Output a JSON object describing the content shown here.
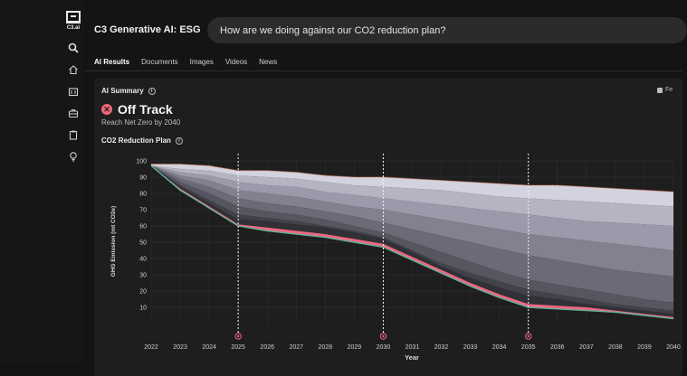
{
  "app": {
    "title": "C3 Generative AI: ESG",
    "logo_text": "C3.ai"
  },
  "rail": {
    "icons": [
      "search-icon",
      "home-icon",
      "building-icon",
      "briefcase-icon",
      "clipboard-icon",
      "lightbulb-icon"
    ]
  },
  "search": {
    "query": "How are we doing against our CO2 reduction plan?"
  },
  "tabs": [
    {
      "label": "AI Results",
      "active": true
    },
    {
      "label": "Documents",
      "active": false
    },
    {
      "label": "Images",
      "active": false
    },
    {
      "label": "Videos",
      "active": false
    },
    {
      "label": "News",
      "active": false
    }
  ],
  "summary": {
    "label": "AI Summary",
    "feedback_label": "Fe",
    "status": "Off Track",
    "status_color": "#f0677d",
    "subtitle": "Reach Net Zero by 2040",
    "chart_label": "CO2 Reduction Plan"
  },
  "chart_data": {
    "type": "area",
    "ylabel": "GHG Emission (mt CO2e)",
    "xlabel": "Year",
    "x": [
      2022,
      2023,
      2024,
      2025,
      2026,
      2027,
      2028,
      2029,
      2030,
      2031,
      2032,
      2033,
      2034,
      2035,
      2036,
      2037,
      2038,
      2039,
      2040
    ],
    "ylim": [
      0,
      100
    ],
    "yticks": [
      10,
      20,
      30,
      40,
      50,
      60,
      70,
      80,
      90,
      100
    ],
    "milestones": [
      2025,
      2030,
      2035
    ],
    "grid": true,
    "colors": {
      "total_line": "#e07a5f",
      "gap_band": "#ef6880",
      "target_line": "#5fb39a",
      "bands": [
        "#d3d3df",
        "#b4b4c2",
        "#9a9aaa",
        "#82828f",
        "#6b6b78",
        "#565660",
        "#42424a",
        "#303036"
      ]
    },
    "series": [
      {
        "values": [
          98,
          98,
          97,
          94,
          94,
          93,
          91,
          90,
          90,
          89,
          88,
          87,
          86,
          85,
          85,
          84,
          83,
          82,
          81
        ]
      },
      {
        "values": [
          97,
          95,
          94,
          91,
          90,
          89,
          87,
          85,
          84,
          83,
          82,
          80,
          78,
          77,
          76,
          75,
          74,
          73,
          72
        ]
      },
      {
        "values": [
          97,
          93,
          91,
          87,
          85,
          84,
          81,
          79,
          77,
          75,
          73,
          71,
          69,
          67,
          65,
          63,
          62,
          61,
          60
        ]
      },
      {
        "values": [
          97,
          91,
          88,
          82,
          80,
          78,
          75,
          72,
          70,
          67,
          64,
          61,
          58,
          55,
          53,
          51,
          49,
          47,
          45
        ]
      },
      {
        "values": [
          97,
          89,
          84,
          77,
          74,
          72,
          69,
          66,
          62,
          58,
          54,
          50,
          46,
          42,
          39,
          36,
          33,
          31,
          29
        ]
      },
      {
        "values": [
          97,
          87,
          80,
          72,
          69,
          67,
          64,
          60,
          56,
          50,
          44,
          38,
          32,
          27,
          24,
          21,
          18,
          15,
          13
        ]
      },
      {
        "values": [
          97,
          85,
          76,
          67,
          65,
          63,
          60,
          57,
          53,
          45,
          37,
          31,
          26,
          21,
          18,
          15,
          12,
          10,
          8
        ]
      },
      {
        "values": [
          97,
          84,
          74,
          64,
          63,
          61,
          59,
          56,
          52,
          44,
          35,
          28,
          22,
          17,
          15,
          12,
          10,
          8,
          6
        ]
      },
      {
        "values": [
          97,
          83,
          72,
          61,
          59,
          57,
          55,
          52,
          49,
          41,
          33,
          25,
          18,
          12,
          11,
          10,
          8,
          6,
          4
        ]
      },
      {
        "values": [
          97,
          82,
          71,
          60,
          57,
          55,
          53,
          50,
          47,
          39,
          31,
          23,
          16,
          10,
          9,
          8,
          7,
          5,
          3
        ]
      }
    ]
  }
}
